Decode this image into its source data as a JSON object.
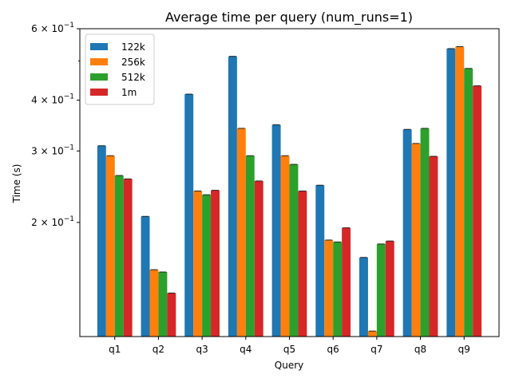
{
  "chart_data": {
    "type": "bar",
    "title": "Average time per query (num_runs=1)",
    "xlabel": "Query",
    "ylabel": "Time (s)",
    "yscale": "log",
    "ylim": [
      0.1047,
      0.6
    ],
    "categories": [
      "q1",
      "q2",
      "q3",
      "q4",
      "q5",
      "q6",
      "q7",
      "q8",
      "q9"
    ],
    "yticks": [
      {
        "value": 0.2,
        "mantissa": "2",
        "exponent": "−1"
      },
      {
        "value": 0.3,
        "mantissa": "3",
        "exponent": "−1"
      },
      {
        "value": 0.4,
        "mantissa": "4",
        "exponent": "−1"
      },
      {
        "value": 0.6,
        "mantissa": "6",
        "exponent": "−1"
      }
    ],
    "y_times_sign": "×",
    "y_base": "10",
    "y_minor_ticks": [
      0.5
    ],
    "series": [
      {
        "name": "122k",
        "color": "#1f77b4",
        "values": [
          0.309,
          0.207,
          0.414,
          0.513,
          0.348,
          0.247,
          0.164,
          0.339,
          0.536
        ]
      },
      {
        "name": "256k",
        "color": "#ff7f0e",
        "values": [
          0.292,
          0.153,
          0.239,
          0.341,
          0.292,
          0.181,
          0.108,
          0.313,
          0.542
        ]
      },
      {
        "name": "512k",
        "color": "#2ca02c",
        "values": [
          0.261,
          0.151,
          0.234,
          0.292,
          0.278,
          0.179,
          0.177,
          0.341,
          0.479
        ]
      },
      {
        "name": "1m",
        "color": "#d62728",
        "values": [
          0.256,
          0.134,
          0.24,
          0.253,
          0.239,
          0.194,
          0.18,
          0.291,
          0.434
        ]
      }
    ],
    "legend_position": "upper-left",
    "grid": false
  }
}
